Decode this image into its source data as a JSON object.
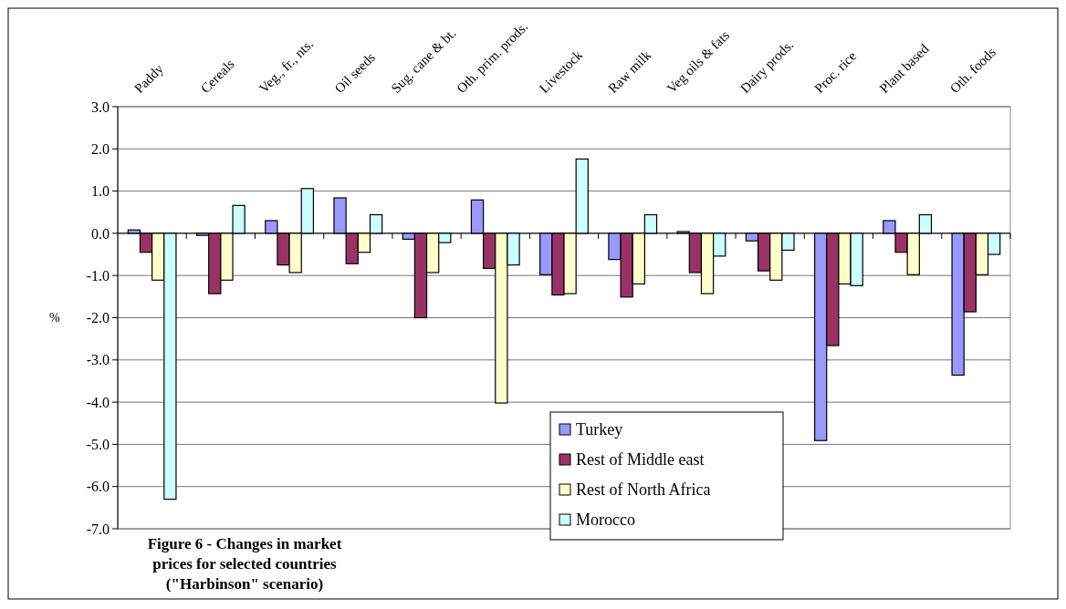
{
  "chart_data": {
    "type": "bar",
    "title": "Figure 6 - Changes in market prices for selected countries (\"Harbinson\" scenario)",
    "ylabel": "%",
    "categories": [
      "Paddy",
      "Cereals",
      "Veg., fr., nts.",
      "Oil seeds",
      "Sug. cane & bt.",
      "Oth. prim. prods.",
      "Livestock",
      "Raw milk",
      "Veg oils & fats",
      "Dairy prods.",
      "Proc. rice",
      "Plant based",
      "Oth. foods"
    ],
    "series": [
      {
        "name": "Turkey",
        "color": "#9999ff",
        "values": [
          0.08,
          -0.05,
          0.3,
          0.84,
          -0.14,
          0.79,
          -0.98,
          -0.62,
          0.04,
          -0.18,
          -4.91,
          0.3,
          -3.36
        ]
      },
      {
        "name": "Rest of Middle east",
        "color": "#993366",
        "values": [
          -0.45,
          -1.43,
          -0.75,
          -0.72,
          -2.0,
          -0.83,
          -1.46,
          -1.51,
          -0.93,
          -0.89,
          -2.66,
          -0.45,
          -1.86
        ]
      },
      {
        "name": "Rest of North Africa",
        "color": "#ffffcc",
        "values": [
          -1.11,
          -1.11,
          -0.93,
          -0.45,
          -0.93,
          -4.02,
          -1.43,
          -1.2,
          -1.43,
          -1.11,
          -1.2,
          -0.98,
          -0.98
        ]
      },
      {
        "name": "Morocco",
        "color": "#ccffff",
        "values": [
          -6.3,
          0.66,
          1.06,
          0.44,
          -0.22,
          -0.75,
          1.76,
          0.44,
          -0.54,
          -0.4,
          -1.24,
          0.44,
          -0.5
        ]
      }
    ],
    "ylim": [
      -7,
      3
    ],
    "yticks": [
      {
        "value": 3,
        "label": "3.0"
      },
      {
        "value": 2,
        "label": "2.0"
      },
      {
        "value": 1,
        "label": "1.0"
      },
      {
        "value": 0,
        "label": "0.0"
      },
      {
        "value": -1,
        "label": "-1.0"
      },
      {
        "value": -2,
        "label": "-2.0"
      },
      {
        "value": -3,
        "label": "-3.0"
      },
      {
        "value": -4,
        "label": "-4.0"
      },
      {
        "value": -5,
        "label": "-5.0"
      },
      {
        "value": -6,
        "label": "-6.0"
      },
      {
        "value": -7,
        "label": "-7.0"
      }
    ],
    "grid": "y",
    "legend": "bottom"
  }
}
